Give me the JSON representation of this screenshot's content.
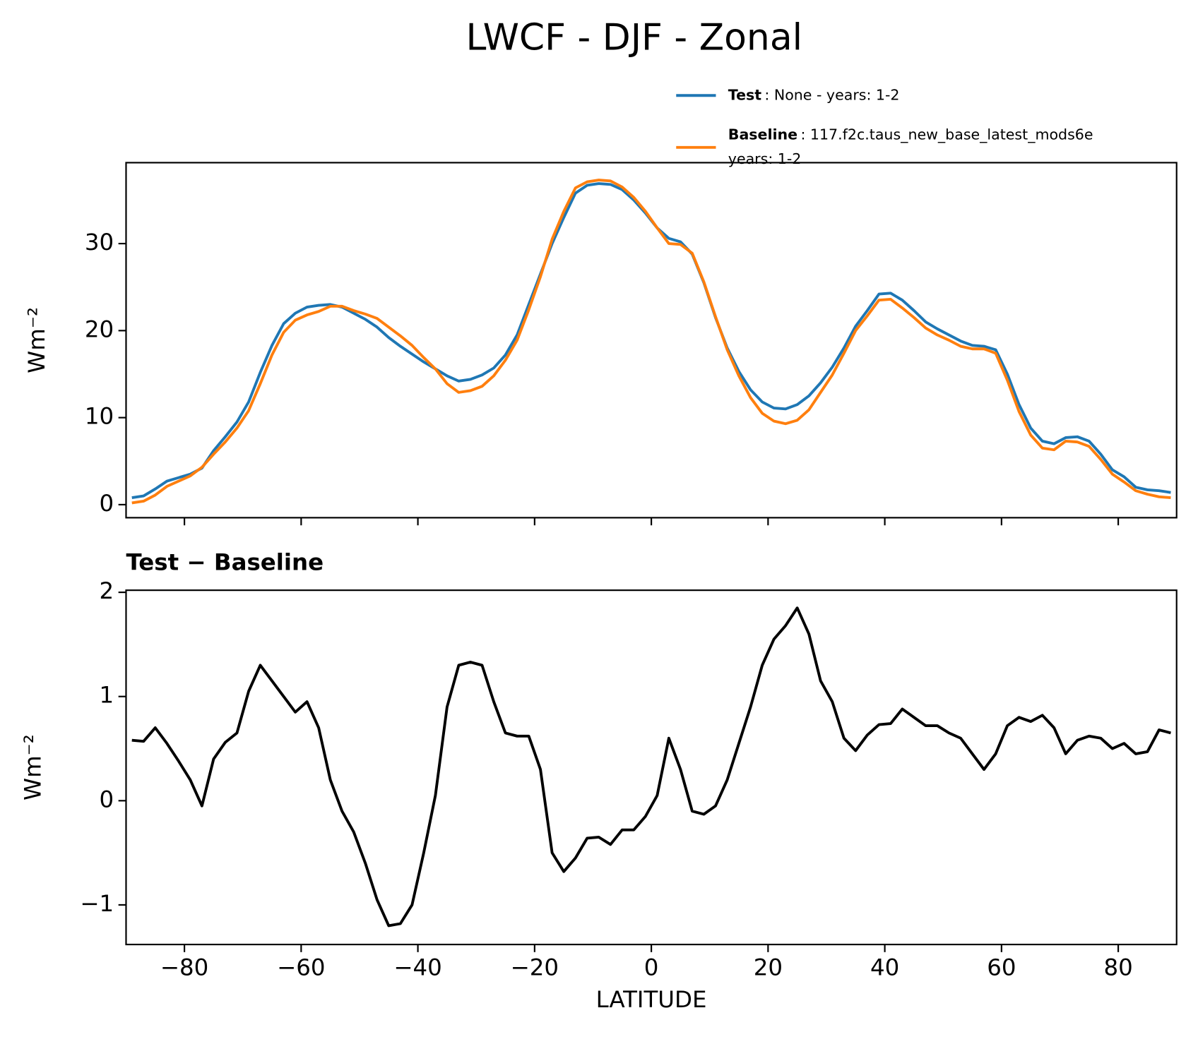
{
  "chart_data": [
    {
      "type": "line",
      "title": "LWCF - DJF - Zonal",
      "ylabel": "Wm⁻²",
      "x": [
        -89,
        -87,
        -85,
        -83,
        -81,
        -79,
        -77,
        -75,
        -73,
        -71,
        -69,
        -67,
        -65,
        -63,
        -61,
        -59,
        -57,
        -55,
        -53,
        -51,
        -49,
        -47,
        -45,
        -43,
        -41,
        -39,
        -37,
        -35,
        -33,
        -31,
        -29,
        -27,
        -25,
        -23,
        -21,
        -19,
        -17,
        -15,
        -13,
        -11,
        -9,
        -7,
        -5,
        -3,
        -1,
        1,
        3,
        5,
        7,
        9,
        11,
        13,
        15,
        17,
        19,
        21,
        23,
        25,
        27,
        29,
        31,
        33,
        35,
        37,
        39,
        41,
        43,
        45,
        47,
        49,
        51,
        53,
        55,
        57,
        59,
        61,
        63,
        65,
        67,
        69,
        71,
        73,
        75,
        77,
        79,
        81,
        83,
        85,
        87,
        89
      ],
      "series": [
        {
          "name": "Test",
          "description": [
            ": None - years: 1-2"
          ],
          "color": "#1f77b4",
          "values": [
            0.8,
            1.0,
            1.8,
            2.7,
            3.1,
            3.5,
            4.2,
            6.2,
            7.8,
            9.5,
            11.8,
            15.2,
            18.3,
            20.8,
            22.0,
            22.7,
            22.9,
            23.0,
            22.7,
            22.0,
            21.3,
            20.4,
            19.2,
            18.2,
            17.3,
            16.4,
            15.6,
            14.8,
            14.2,
            14.4,
            14.9,
            15.7,
            17.2,
            19.5,
            23.0,
            26.5,
            30.0,
            33.0,
            35.8,
            36.7,
            36.9,
            36.8,
            36.2,
            35.0,
            33.5,
            31.8,
            30.6,
            30.2,
            28.8,
            25.5,
            21.5,
            18.0,
            15.3,
            13.2,
            11.8,
            11.1,
            11.0,
            11.5,
            12.5,
            14.0,
            15.8,
            18.0,
            20.5,
            22.3,
            24.2,
            24.3,
            23.5,
            22.3,
            21.0,
            20.2,
            19.5,
            18.8,
            18.3,
            18.2,
            17.8,
            15.0,
            11.5,
            8.8,
            7.3,
            7.0,
            7.7,
            7.8,
            7.3,
            5.8,
            4.0,
            3.2,
            2.0,
            1.7,
            1.6,
            1.4
          ]
        },
        {
          "name": "Baseline",
          "description": [
            ": 117.f2c.taus_new_base_latest_mods6e",
            "years: 1-2"
          ],
          "color": "#ff7f0e",
          "values": [
            0.2,
            0.4,
            1.1,
            2.1,
            2.7,
            3.3,
            4.3,
            5.8,
            7.2,
            8.8,
            10.8,
            13.9,
            17.2,
            19.8,
            21.2,
            21.8,
            22.2,
            22.8,
            22.8,
            22.3,
            21.9,
            21.4,
            20.4,
            19.4,
            18.3,
            16.9,
            15.6,
            13.9,
            12.9,
            13.1,
            13.6,
            14.8,
            16.6,
            18.9,
            22.4,
            26.2,
            30.5,
            33.7,
            36.4,
            37.1,
            37.3,
            37.2,
            36.5,
            35.3,
            33.7,
            31.8,
            30.0,
            29.9,
            28.9,
            25.6,
            21.6,
            17.8,
            14.8,
            12.3,
            10.5,
            9.6,
            9.3,
            9.7,
            10.9,
            12.9,
            14.9,
            17.4,
            20.0,
            21.7,
            23.5,
            23.6,
            22.6,
            21.5,
            20.3,
            19.5,
            18.9,
            18.2,
            17.9,
            17.9,
            17.4,
            14.3,
            10.7,
            8.0,
            6.5,
            6.3,
            7.3,
            7.2,
            6.7,
            5.2,
            3.5,
            2.6,
            1.6,
            1.2,
            0.9,
            0.8
          ]
        }
      ],
      "xlim": [
        -90,
        90
      ],
      "ylim": [
        -1.5,
        39.3
      ],
      "xticks": [
        -80,
        -60,
        -40,
        -20,
        0,
        20,
        40,
        60,
        80
      ],
      "yticks": [
        0,
        10,
        20,
        30
      ]
    },
    {
      "type": "line",
      "title": "Test − Baseline",
      "ylabel": "Wm⁻²",
      "xlabel": "LATITUDE",
      "x": [
        -89,
        -87,
        -85,
        -83,
        -81,
        -79,
        -77,
        -75,
        -73,
        -71,
        -69,
        -67,
        -65,
        -63,
        -61,
        -59,
        -57,
        -55,
        -53,
        -51,
        -49,
        -47,
        -45,
        -43,
        -41,
        -39,
        -37,
        -35,
        -33,
        -31,
        -29,
        -27,
        -25,
        -23,
        -21,
        -19,
        -17,
        -15,
        -13,
        -11,
        -9,
        -7,
        -5,
        -3,
        -1,
        1,
        3,
        5,
        7,
        9,
        11,
        13,
        15,
        17,
        19,
        21,
        23,
        25,
        27,
        29,
        31,
        33,
        35,
        37,
        39,
        41,
        43,
        45,
        47,
        49,
        51,
        53,
        55,
        57,
        59,
        61,
        63,
        65,
        67,
        69,
        71,
        73,
        75,
        77,
        79,
        81,
        83,
        85,
        87,
        89
      ],
      "series": [
        {
          "color": "#000000",
          "values": [
            0.58,
            0.57,
            0.7,
            0.55,
            0.38,
            0.2,
            -0.05,
            0.4,
            0.56,
            0.65,
            1.05,
            1.3,
            1.15,
            1.0,
            0.85,
            0.95,
            0.7,
            0.2,
            -0.1,
            -0.3,
            -0.6,
            -0.95,
            -1.2,
            -1.18,
            -1.0,
            -0.5,
            0.05,
            0.9,
            1.3,
            1.33,
            1.3,
            0.95,
            0.65,
            0.62,
            0.62,
            0.3,
            -0.5,
            -0.68,
            -0.55,
            -0.36,
            -0.35,
            -0.42,
            -0.28,
            -0.28,
            -0.15,
            0.05,
            0.6,
            0.3,
            -0.1,
            -0.13,
            -0.05,
            0.2,
            0.55,
            0.9,
            1.3,
            1.55,
            1.68,
            1.85,
            1.6,
            1.15,
            0.95,
            0.6,
            0.48,
            0.63,
            0.73,
            0.74,
            0.88,
            0.8,
            0.72,
            0.72,
            0.65,
            0.6,
            0.45,
            0.3,
            0.45,
            0.72,
            0.8,
            0.76,
            0.82,
            0.7,
            0.45,
            0.58,
            0.62,
            0.6,
            0.5,
            0.55,
            0.45,
            0.47,
            0.68,
            0.65
          ]
        }
      ],
      "xlim": [
        -90,
        90
      ],
      "ylim": [
        -1.38,
        2.02
      ],
      "xticks": [
        {
          "value": -80,
          "label": "−80"
        },
        {
          "value": -60,
          "label": "−60"
        },
        {
          "value": -40,
          "label": "−40"
        },
        {
          "value": -20,
          "label": "−20"
        },
        0,
        20,
        40,
        60,
        80
      ],
      "yticks": [
        {
          "value": -1,
          "label": "−1"
        },
        0,
        1,
        2
      ]
    }
  ]
}
